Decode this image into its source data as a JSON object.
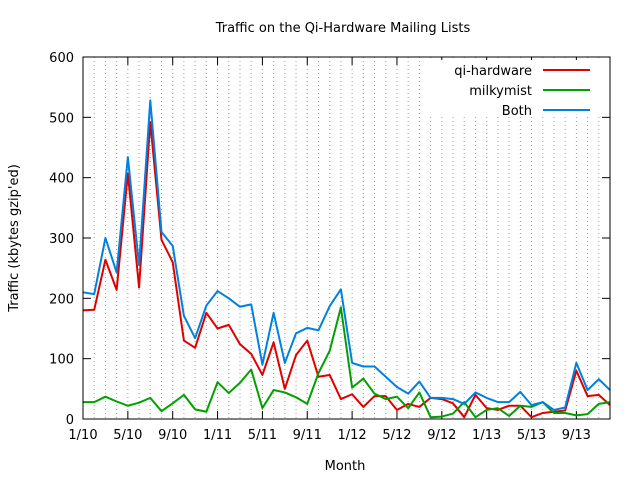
{
  "chart_data": {
    "type": "line",
    "title": "Traffic on the Qi-Hardware Mailing Lists",
    "xlabel": "Month",
    "ylabel": "Traffic (kbytes gzip'ed)",
    "ylim": [
      0,
      600
    ],
    "yticks": [
      0,
      100,
      200,
      300,
      400,
      500,
      600
    ],
    "xticks": [
      {
        "i": 0,
        "label": "1/10"
      },
      {
        "i": 4,
        "label": "5/10"
      },
      {
        "i": 8,
        "label": "9/10"
      },
      {
        "i": 12,
        "label": "1/11"
      },
      {
        "i": 16,
        "label": "5/11"
      },
      {
        "i": 20,
        "label": "9/11"
      },
      {
        "i": 24,
        "label": "1/12"
      },
      {
        "i": 28,
        "label": "5/12"
      },
      {
        "i": 32,
        "label": "9/12"
      },
      {
        "i": 36,
        "label": "1/13"
      },
      {
        "i": 40,
        "label": "5/13"
      },
      {
        "i": 44,
        "label": "9/13"
      }
    ],
    "grid": "vertical dotted at each month",
    "legend_position": "top-right",
    "series": [
      {
        "name": "qi-hardware",
        "color": "#e00000",
        "values": [
          180,
          181,
          264,
          214,
          407,
          218,
          492,
          297,
          260,
          130,
          118,
          176,
          150,
          156,
          124,
          108,
          73,
          127,
          50,
          106,
          130,
          70,
          73,
          33,
          41,
          20,
          38,
          38,
          15,
          25,
          20,
          35,
          33,
          26,
          3,
          40,
          18,
          15,
          22,
          22,
          3,
          10,
          12,
          14,
          80,
          38,
          40,
          23
        ]
      },
      {
        "name": "milkymist",
        "color": "#00a000",
        "values": [
          28,
          28,
          37,
          29,
          22,
          27,
          35,
          13,
          26,
          40,
          16,
          12,
          61,
          43,
          60,
          82,
          18,
          48,
          44,
          36,
          25,
          76,
          113,
          185,
          52,
          67,
          42,
          33,
          37,
          18,
          44,
          3,
          4,
          9,
          28,
          3,
          15,
          18,
          5,
          22,
          20,
          28,
          10,
          10,
          6,
          8,
          25,
          28
        ]
      },
      {
        "name": "Both",
        "color": "#0080e0",
        "values": [
          210,
          207,
          300,
          243,
          434,
          255,
          528,
          310,
          287,
          171,
          134,
          188,
          212,
          200,
          186,
          190,
          90,
          176,
          93,
          142,
          151,
          147,
          187,
          215,
          93,
          87,
          87,
          70,
          53,
          42,
          62,
          35,
          35,
          33,
          25,
          44,
          35,
          28,
          28,
          45,
          23,
          28,
          15,
          19,
          93,
          48,
          66,
          48
        ]
      }
    ]
  }
}
